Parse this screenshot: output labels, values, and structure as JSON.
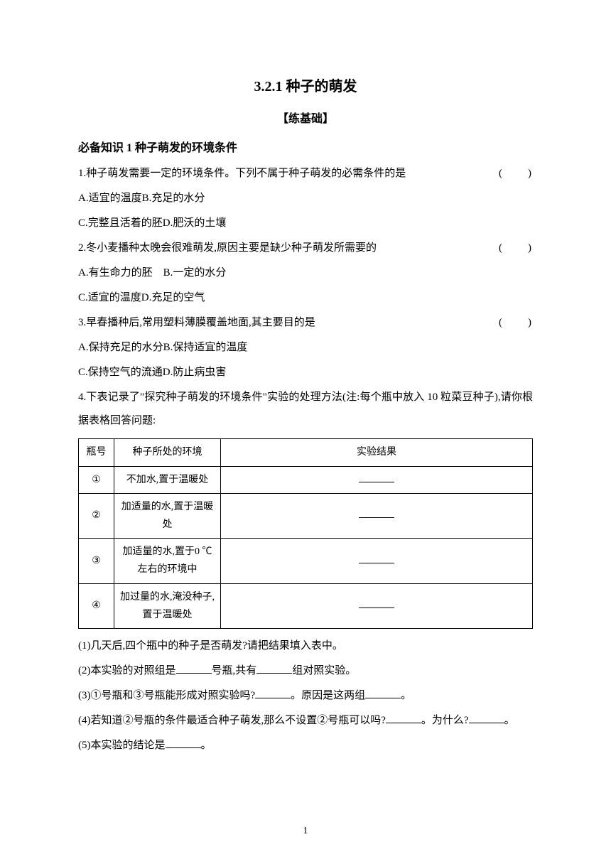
{
  "title": "3.2.1 种子的萌发",
  "subtitle": "【练基础】",
  "section1": {
    "heading": "必备知识 1 种子萌发的环境条件",
    "q1": {
      "text": "1.种子萌发需要一定的环境条件。下列不属于种子萌发的必需条件的是",
      "optA": "A.适宜的温度B.充足的水分",
      "optC": "C.完整且活着的胚D.肥沃的土壤"
    },
    "q2": {
      "text": "2.冬小麦播种太晚会很难萌发,原因主要是缺少种子萌发所需要的",
      "optA": "A.有生命力的胚　B.一定的水分",
      "optC": "C.适宜的温度D.充足的空气"
    },
    "q3": {
      "text": "3.早春播种后,常用塑料薄膜覆盖地面,其主要目的是",
      "optA": "A.保持充足的水分B.保持适宜的温度",
      "optC": "C.保持空气的流通D.防止病虫害"
    },
    "q4": {
      "intro": "4.下表记录了\"探究种子萌发的环境条件\"实验的处理方法(注:每个瓶中放入 10 粒菜豆种子),请你根据表格回答问题:",
      "table": {
        "header1": "瓶号",
        "header2": "种子所处的环境",
        "header3": "实验结果",
        "row1_num": "①",
        "row1_env": "不加水,置于温暖处",
        "row2_num": "②",
        "row2_env": "加适量的水,置于温暖处",
        "row3_num": "③",
        "row3_env": "加适量的水,置于0 ℃左右的环境中",
        "row4_num": "④",
        "row4_env": "加过量的水,淹没种子,置于温暖处"
      },
      "sub1": "(1)几天后,四个瓶中的种子是否萌发?请把结果填入表中。",
      "sub2a": "(2)本实验的对照组是",
      "sub2b": "号瓶,共有",
      "sub2c": "组对照实验。",
      "sub3a": "(3)①号瓶和③号瓶能形成对照实验吗?",
      "sub3b": "。原因是这两组",
      "sub3c": "。",
      "sub4a": "(4)若知道②号瓶的条件最适合种子萌发,那么不设置②号瓶可以吗?",
      "sub4b": "。为什么?",
      "sub4c": "。",
      "sub5a": "(5)本实验的结论是",
      "sub5b": "。"
    }
  },
  "paren": "(　　)",
  "pageNumber": "1"
}
